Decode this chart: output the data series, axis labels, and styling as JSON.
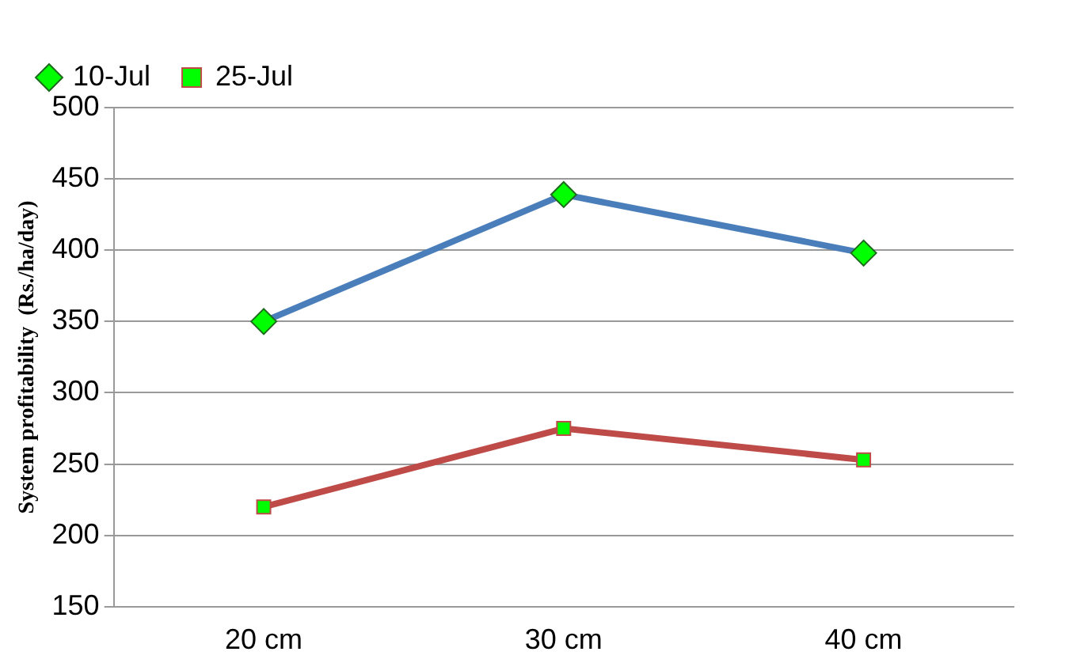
{
  "chart_data": {
    "type": "line",
    "ylabel": "System profitability  (Rs./ha/day)",
    "categories": [
      "20 cm",
      "30 cm",
      "40 cm"
    ],
    "series": [
      {
        "name": "10-Jul",
        "color": "#4a7ebb",
        "marker": "diamond",
        "values": [
          350,
          439,
          398
        ]
      },
      {
        "name": "25-Jul",
        "color": "#be4b48",
        "marker": "square",
        "values": [
          220,
          275,
          253
        ]
      }
    ],
    "ylim": [
      150,
      500
    ],
    "yticks": [
      150,
      200,
      250,
      300,
      350,
      400,
      450,
      500
    ],
    "grid": "y",
    "legend": "top left",
    "line_style": "solid"
  }
}
